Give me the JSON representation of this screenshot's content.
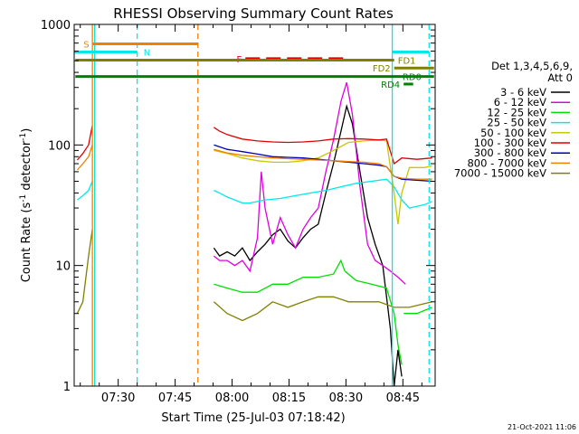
{
  "chart_data": {
    "type": "line",
    "title": "RHESSI Observing Summary Count Rates",
    "xlabel": "Start Time (25-Jul-03 07:18:42)",
    "ylabel_main": "Count Rate (s",
    "ylabel_sup1": "-1",
    "ylabel_mid": " detector",
    "ylabel_sup2": "-1",
    "ylabel_end": ")",
    "yscale": "log",
    "ylim": [
      1,
      1000
    ],
    "xlim": [
      -0.3,
      94.8
    ],
    "y_ticks": [
      {
        "value": 1,
        "label": "1"
      },
      {
        "value": 10,
        "label": "10"
      },
      {
        "value": 100,
        "label": "100"
      },
      {
        "value": 1000,
        "label": "1000"
      }
    ],
    "x_ticks": [
      {
        "value": 11.3,
        "label": "07:30"
      },
      {
        "value": 26.3,
        "label": "07:45"
      },
      {
        "value": 41.3,
        "label": "08:00"
      },
      {
        "value": 56.3,
        "label": "08:15"
      },
      {
        "value": 71.3,
        "label": "08:30"
      },
      {
        "value": 86.3,
        "label": "08:45"
      }
    ],
    "legend_title": "Det 1,3,4,5,6,9,",
    "legend_subtitle": "Att 0",
    "series": [
      {
        "name": "3 - 6 keV",
        "color": "#000000",
        "segments": [
          [
            [
              36.5,
              14
            ],
            [
              38,
              12
            ],
            [
              40,
              13
            ],
            [
              42,
              12
            ],
            [
              44,
              14
            ],
            [
              46,
              11
            ],
            [
              48,
              13
            ],
            [
              50,
              15
            ],
            [
              52,
              18
            ],
            [
              54,
              20
            ],
            [
              56,
              16
            ],
            [
              58,
              14
            ],
            [
              60,
              17
            ],
            [
              62,
              20
            ],
            [
              64,
              22
            ],
            [
              66,
              40
            ],
            [
              68,
              70
            ],
            [
              70,
              130
            ],
            [
              71.5,
              210
            ],
            [
              73,
              150
            ],
            [
              75,
              60
            ],
            [
              77,
              25
            ],
            [
              79,
              15
            ],
            [
              81,
              10
            ],
            [
              83,
              3
            ],
            [
              84,
              1
            ],
            [
              85,
              2
            ],
            [
              86,
              1.2
            ]
          ]
        ]
      },
      {
        "name": "6 - 12 keV",
        "color": "#e000e0",
        "segments": [
          [
            [
              36.5,
              12
            ],
            [
              38,
              11
            ],
            [
              40,
              11
            ],
            [
              42,
              10
            ],
            [
              44,
              11
            ],
            [
              46,
              9
            ],
            [
              48,
              17
            ],
            [
              49,
              60
            ],
            [
              50,
              30
            ],
            [
              52,
              15
            ],
            [
              54,
              25
            ],
            [
              56,
              18
            ],
            [
              58,
              14
            ],
            [
              60,
              20
            ],
            [
              62,
              25
            ],
            [
              64,
              30
            ],
            [
              66,
              60
            ],
            [
              68,
              110
            ],
            [
              70,
              230
            ],
            [
              71.5,
              330
            ],
            [
              73,
              180
            ],
            [
              75,
              45
            ],
            [
              77,
              15
            ],
            [
              79,
              11
            ],
            [
              81,
              10
            ],
            [
              83,
              9
            ],
            [
              85,
              8
            ],
            [
              87,
              7
            ]
          ]
        ]
      },
      {
        "name": "12 - 25 keV",
        "color": "#00e000",
        "segments": [
          [
            [
              36.5,
              7
            ],
            [
              40,
              6.5
            ],
            [
              44,
              6
            ],
            [
              48,
              6
            ],
            [
              52,
              7
            ],
            [
              56,
              7
            ],
            [
              60,
              8
            ],
            [
              64,
              8
            ],
            [
              68,
              8.5
            ],
            [
              70,
              11
            ],
            [
              71,
              9
            ],
            [
              74,
              7.5
            ],
            [
              78,
              7
            ],
            [
              82,
              6.5
            ],
            [
              84,
              4
            ],
            [
              85,
              2.2
            ],
            [
              86,
              1.5
            ]
          ],
          [
            [
              86.5,
              4
            ],
            [
              90,
              4
            ],
            [
              94,
              4.5
            ]
          ]
        ]
      },
      {
        "name": "25 - 50 keV",
        "color": "#00e8e8",
        "segments": [
          [
            [
              0.5,
              35
            ],
            [
              2,
              38
            ],
            [
              3.5,
              42
            ],
            [
              4.5,
              50
            ]
          ],
          [
            [
              36.5,
              42
            ],
            [
              38,
              40
            ],
            [
              40,
              37
            ],
            [
              42,
              35
            ],
            [
              44,
              33
            ],
            [
              46,
              33
            ],
            [
              50,
              35
            ],
            [
              54,
              36
            ],
            [
              58,
              38
            ],
            [
              62,
              40
            ],
            [
              66,
              42
            ],
            [
              70,
              45
            ],
            [
              74,
              48
            ],
            [
              78,
              50
            ],
            [
              82,
              52
            ],
            [
              84,
              45
            ],
            [
              86,
              35
            ],
            [
              88,
              30
            ],
            [
              92,
              32
            ],
            [
              94,
              34
            ]
          ]
        ]
      },
      {
        "name": "50 - 100 keV",
        "color": "#c8c800",
        "segments": [
          [
            [
              36.5,
              90
            ],
            [
              40,
              85
            ],
            [
              44,
              78
            ],
            [
              48,
              74
            ],
            [
              52,
              72
            ],
            [
              56,
              72
            ],
            [
              60,
              74
            ],
            [
              64,
              78
            ],
            [
              68,
              90
            ],
            [
              72,
              105
            ],
            [
              76,
              108
            ],
            [
              80,
              110
            ],
            [
              82,
              108
            ],
            [
              84,
              40
            ],
            [
              85,
              22
            ],
            [
              86,
              40
            ],
            [
              88,
              65
            ],
            [
              92,
              65
            ],
            [
              94,
              67
            ]
          ]
        ]
      },
      {
        "name": "100 - 300 keV",
        "color": "#e00000",
        "segments": [
          [
            [
              0.5,
              75
            ],
            [
              2,
              85
            ],
            [
              3.5,
              100
            ],
            [
              4.5,
              145
            ]
          ],
          [
            [
              36.5,
              140
            ],
            [
              38,
              130
            ],
            [
              40,
              122
            ],
            [
              44,
              112
            ],
            [
              48,
              108
            ],
            [
              52,
              106
            ],
            [
              56,
              105
            ],
            [
              60,
              106
            ],
            [
              64,
              108
            ],
            [
              68,
              112
            ],
            [
              72,
              113
            ],
            [
              76,
              112
            ],
            [
              80,
              110
            ],
            [
              82,
              112
            ],
            [
              84,
              70
            ],
            [
              86,
              78
            ],
            [
              90,
              76
            ],
            [
              94,
              78
            ]
          ]
        ]
      },
      {
        "name": "300 - 800 keV",
        "color": "#0000b0",
        "segments": [
          [
            [
              36.5,
              100
            ],
            [
              40,
              92
            ],
            [
              44,
              88
            ],
            [
              48,
              84
            ],
            [
              52,
              80
            ],
            [
              56,
              79
            ],
            [
              60,
              78
            ],
            [
              64,
              76
            ],
            [
              68,
              74
            ],
            [
              72,
              72
            ],
            [
              76,
              70
            ],
            [
              80,
              68
            ],
            [
              82,
              66
            ],
            [
              84,
              55
            ],
            [
              86,
              52
            ],
            [
              90,
              51
            ],
            [
              94,
              50
            ]
          ]
        ]
      },
      {
        "name": "800 - 7000 keV",
        "color": "#f08000",
        "segments": [
          [
            [
              0.5,
              62
            ],
            [
              2,
              70
            ],
            [
              3.5,
              80
            ],
            [
              4.5,
              100
            ]
          ],
          [
            [
              36.5,
              92
            ],
            [
              40,
              86
            ],
            [
              44,
              82
            ],
            [
              48,
              80
            ],
            [
              52,
              78
            ],
            [
              56,
              77
            ],
            [
              60,
              76
            ],
            [
              64,
              75
            ],
            [
              68,
              74
            ],
            [
              72,
              73
            ],
            [
              76,
              72
            ],
            [
              80,
              70
            ],
            [
              82,
              66
            ],
            [
              84,
              55
            ],
            [
              86,
              53
            ],
            [
              90,
              52
            ],
            [
              94,
              52
            ]
          ]
        ]
      },
      {
        "name": "7000 - 15000 keV",
        "color": "#808000",
        "segments": [
          [
            [
              0.5,
              4
            ],
            [
              2,
              5
            ],
            [
              3.5,
              12
            ],
            [
              4.5,
              20
            ]
          ],
          [
            [
              36.5,
              5
            ],
            [
              40,
              4
            ],
            [
              44,
              3.5
            ],
            [
              48,
              4
            ],
            [
              52,
              5
            ],
            [
              56,
              4.5
            ],
            [
              60,
              5
            ],
            [
              64,
              5.5
            ],
            [
              68,
              5.5
            ],
            [
              72,
              5
            ],
            [
              76,
              5
            ],
            [
              80,
              5
            ],
            [
              84,
              4.5
            ],
            [
              88,
              4.5
            ],
            [
              94,
              5
            ]
          ]
        ]
      }
    ],
    "vertical_lines": [
      {
        "x": 4.5,
        "color": "#f08000",
        "dash": false
      },
      {
        "x": 5.1,
        "color": "#00e8e8",
        "dash": false
      },
      {
        "x": 16.3,
        "color": "#00e8e8",
        "dash": true
      },
      {
        "x": 32.3,
        "color": "#f08000",
        "dash": true
      },
      {
        "x": 83.5,
        "color": "#00e8e8",
        "dash": false
      },
      {
        "x": 93.2,
        "color": "#00e8e8",
        "dash": true
      }
    ],
    "flag_bars": [
      {
        "label": "S",
        "color": "#f08000",
        "y_value": 690,
        "x_start": 4.6,
        "x_end": 32.3,
        "dash": false,
        "label_side": "left"
      },
      {
        "label": "N",
        "color": "#00e8e8",
        "y_value": 590,
        "x_start": -0.3,
        "x_end": 16.3,
        "dash": false,
        "label_side": "right_of_start",
        "label_x": 18.0
      },
      {
        "label": "N",
        "color": "#00e8e8",
        "y_value": 590,
        "x_start": 83.5,
        "x_end": 93.2,
        "dash": false,
        "label_side": "none"
      },
      {
        "label": "F",
        "color": "#e00000",
        "y_value": 520,
        "x_start": 44.8,
        "x_end": 71.2,
        "dash": true,
        "label_side": "left"
      },
      {
        "label": "FD1",
        "color": "#808000",
        "y_value": 505,
        "x_start": 0.0,
        "x_end": 84.0,
        "dash": false,
        "label_side": "right"
      },
      {
        "label": "FD2",
        "color": "#808000",
        "y_value": 435,
        "x_start": 84.0,
        "x_end": 94.5,
        "dash": false,
        "label_side": "left"
      },
      {
        "label": "RD0",
        "color": "#008000",
        "y_value": 370,
        "x_start": 0.0,
        "x_end": 94.5,
        "dash": false,
        "label_side": "right_of_start",
        "label_x": 86.2
      },
      {
        "label": "RD4",
        "color": "#008000",
        "y_value": 320,
        "x_start": 86.5,
        "x_end": 89.0,
        "dash": false,
        "label_side": "left"
      }
    ]
  },
  "footer_timestamp": "21-Oct-2021 11:06"
}
